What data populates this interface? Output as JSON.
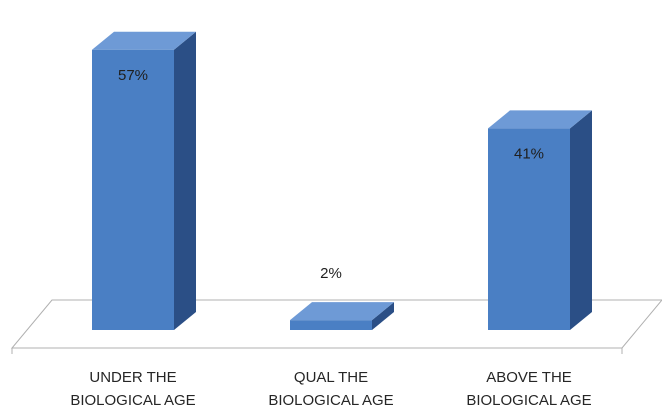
{
  "chart_data": {
    "type": "bar",
    "style": "3d-column",
    "categories": [
      [
        "UNDER THE",
        "BIOLOGICAL AGE"
      ],
      [
        "QUAL THE",
        "BIOLOGICAL AGE"
      ],
      [
        "ABOVE THE",
        "BIOLOGICAL AGE"
      ]
    ],
    "values": [
      57,
      2,
      41
    ],
    "data_labels": [
      "57%",
      "2%",
      "41%"
    ],
    "unit": "%",
    "title": "",
    "xlabel": "",
    "ylabel": "",
    "ylim": [
      0,
      60
    ],
    "grid": false,
    "legend": "none",
    "colors": {
      "bar_front": "#4a7fc4",
      "bar_side": "#2b4f86",
      "bar_top": "#6e9ad6",
      "floor_stroke": "#b0b0b0"
    }
  }
}
